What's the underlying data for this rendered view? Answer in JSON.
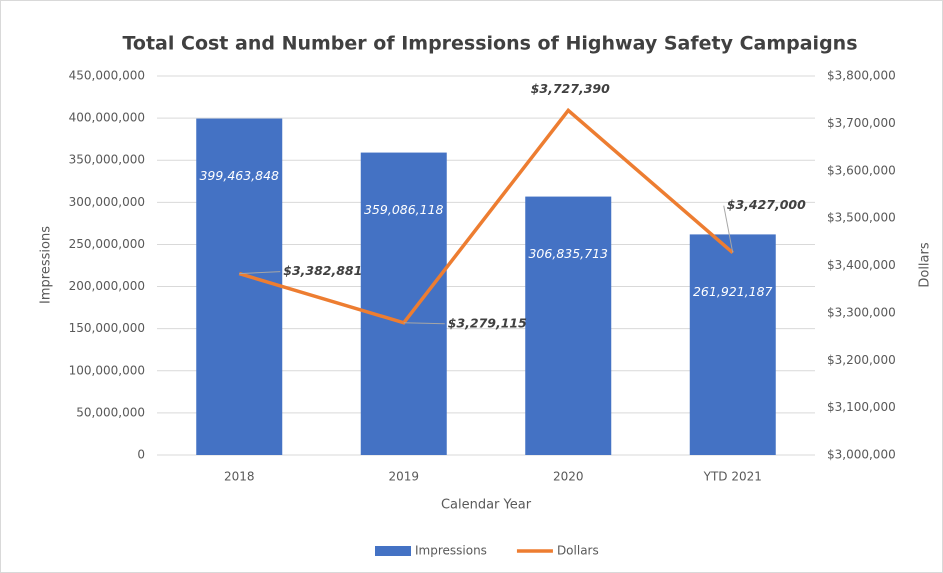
{
  "chart_data": {
    "type": "bar",
    "title": "Total Cost and Number of Impressions of Highway Safety Campaigns",
    "x_label": "Calendar Year",
    "y_label": "Impressions",
    "y2_label": "Dollars",
    "categories": [
      "2018",
      "2019",
      "2020",
      "YTD 2021"
    ],
    "series": [
      {
        "name": "Impressions",
        "type": "bar",
        "color": "#4472c4",
        "values": [
          399463848,
          359086118,
          306835713,
          261921187
        ],
        "value_labels": [
          "399,463,848",
          "359,086,118",
          "306,835,713",
          "261,921,187"
        ]
      },
      {
        "name": "Dollars",
        "type": "line",
        "axis": "y2",
        "color": "#ed7d31",
        "values": [
          3382881,
          3279115,
          3727390,
          3427000
        ],
        "value_labels": [
          "$3,382,881",
          "$3,279,115",
          "$3,727,390",
          "$3,427,000"
        ]
      }
    ],
    "ylim": [
      0,
      450000000
    ],
    "yticks": [
      0,
      {
        "value": 50000000,
        "label": "50,000,000"
      },
      {
        "value": 100000000,
        "label": "100,000,000"
      },
      {
        "value": 150000000,
        "label": "150,000,000"
      },
      {
        "value": 200000000,
        "label": "200,000,000"
      },
      {
        "value": 250000000,
        "label": "250,000,000"
      },
      {
        "value": 300000000,
        "label": "300,000,000"
      },
      {
        "value": 350000000,
        "label": "350,000,000"
      },
      {
        "value": 400000000,
        "label": "400,000,000"
      },
      {
        "value": 450000000,
        "label": "450,000,000"
      }
    ],
    "y2lim": [
      3000000,
      3800000
    ],
    "y2ticks": [
      {
        "value": 3000000,
        "label": "$3,000,000"
      },
      {
        "value": 3100000,
        "label": "$3,100,000"
      },
      {
        "value": 3200000,
        "label": "$3,200,000"
      },
      {
        "value": 3300000,
        "label": "$3,300,000"
      },
      {
        "value": 3400000,
        "label": "$3,400,000"
      },
      {
        "value": 3500000,
        "label": "$3,500,000"
      },
      {
        "value": 3600000,
        "label": "$3,600,000"
      },
      {
        "value": 3700000,
        "label": "$3,700,000"
      },
      {
        "value": 3800000,
        "label": "$3,800,000"
      }
    ],
    "grid": true,
    "legend": "bottom"
  }
}
